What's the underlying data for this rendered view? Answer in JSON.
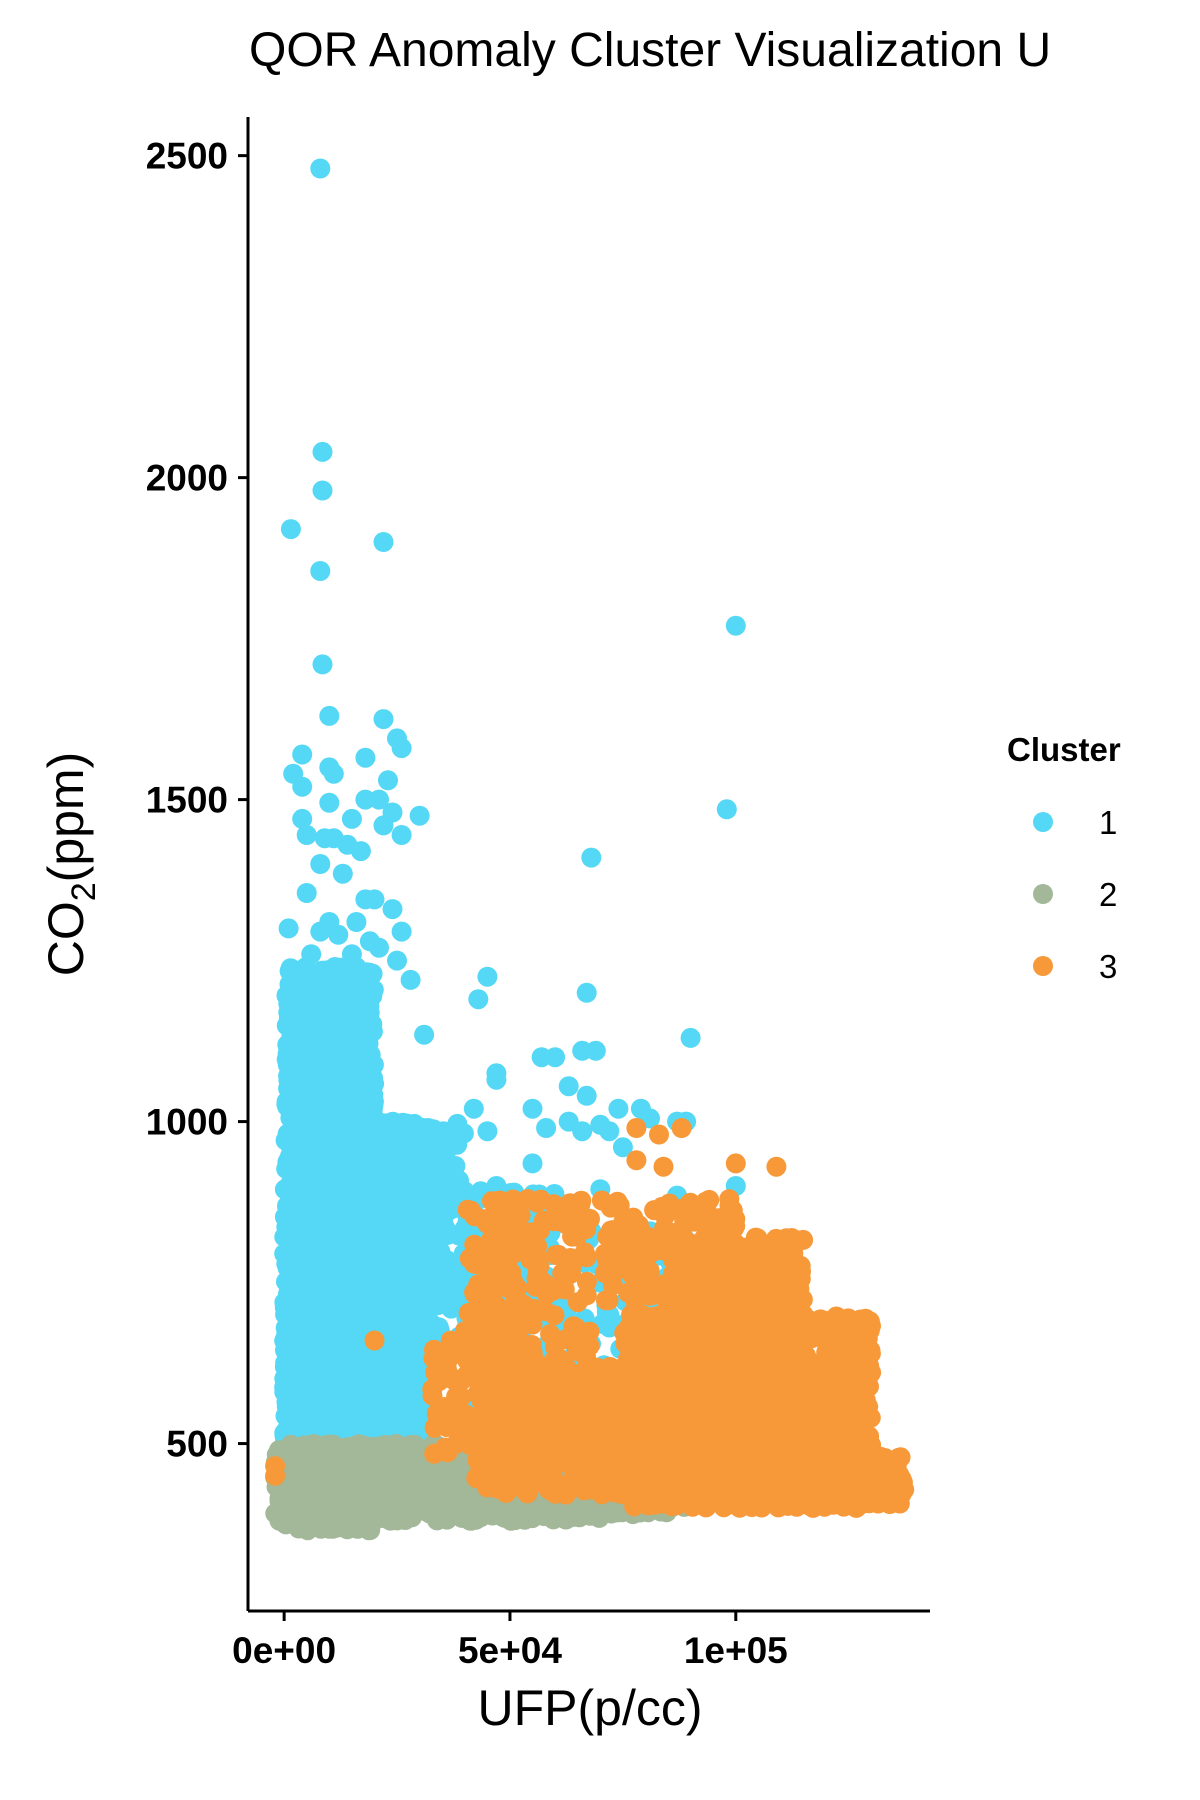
{
  "chart_data": {
    "type": "scatter",
    "title": "QOR Anomaly Cluster Visualization U",
    "xlabel": "UFP(p/cc)",
    "ylabel": "CO2(ppm)",
    "ylabel_parts": {
      "main": "CO",
      "sub": "2",
      "rest": "(ppm)"
    },
    "xlim": [
      -8000,
      143000
    ],
    "ylim": [
      240,
      2560
    ],
    "x_ticks": [
      0,
      50000,
      100000
    ],
    "x_tick_labels": [
      "0e+00",
      "5e+04",
      "1e+05"
    ],
    "y_ticks": [
      500,
      1000,
      1500,
      2000,
      2500
    ],
    "y_tick_labels": [
      "500",
      "1000",
      "1500",
      "2000",
      "2500"
    ],
    "grid": false,
    "legend": {
      "title": "Cluster",
      "position": "right",
      "entries": [
        "1",
        "2",
        "3"
      ]
    },
    "series": [
      {
        "name": "1",
        "color": "#55D8F5",
        "points": [
          [
            8000,
            2480
          ],
          [
            8500,
            2040
          ],
          [
            8500,
            1980
          ],
          [
            1500,
            1920
          ],
          [
            22000,
            1900
          ],
          [
            8000,
            1855
          ],
          [
            8500,
            1710
          ],
          [
            10000,
            1630
          ],
          [
            22000,
            1625
          ],
          [
            25000,
            1595
          ],
          [
            4000,
            1570
          ],
          [
            18000,
            1565
          ],
          [
            26000,
            1580
          ],
          [
            2000,
            1540
          ],
          [
            10000,
            1550
          ],
          [
            11000,
            1540
          ],
          [
            23000,
            1530
          ],
          [
            4000,
            1520
          ],
          [
            18000,
            1500
          ],
          [
            21000,
            1500
          ],
          [
            10000,
            1495
          ],
          [
            24000,
            1480
          ],
          [
            30000,
            1475
          ],
          [
            4000,
            1470
          ],
          [
            15000,
            1470
          ],
          [
            22000,
            1460
          ],
          [
            5000,
            1445
          ],
          [
            9000,
            1440
          ],
          [
            11000,
            1440
          ],
          [
            14000,
            1430
          ],
          [
            17000,
            1420
          ],
          [
            26000,
            1445
          ],
          [
            8000,
            1400
          ],
          [
            13000,
            1385
          ],
          [
            68000,
            1410
          ],
          [
            5000,
            1355
          ],
          [
            18000,
            1345
          ],
          [
            20000,
            1345
          ],
          [
            24000,
            1330
          ],
          [
            10000,
            1310
          ],
          [
            16000,
            1310
          ],
          [
            1000,
            1300
          ],
          [
            8000,
            1295
          ],
          [
            12000,
            1290
          ],
          [
            19000,
            1280
          ],
          [
            26000,
            1295
          ],
          [
            21000,
            1270
          ],
          [
            6000,
            1260
          ],
          [
            15000,
            1260
          ],
          [
            25000,
            1250
          ],
          [
            45000,
            1225
          ],
          [
            67000,
            1200
          ],
          [
            3000,
            1210
          ],
          [
            28000,
            1220
          ],
          [
            43000,
            1190
          ],
          [
            11000,
            1185
          ],
          [
            90000,
            1130
          ],
          [
            4000,
            1130
          ],
          [
            31000,
            1135
          ],
          [
            66000,
            1110
          ],
          [
            69000,
            1110
          ],
          [
            57000,
            1100
          ],
          [
            60000,
            1100
          ],
          [
            47000,
            1075
          ],
          [
            47000,
            1065
          ],
          [
            63000,
            1055
          ],
          [
            67000,
            1040
          ],
          [
            55000,
            1020
          ],
          [
            42000,
            1020
          ],
          [
            74000,
            1020
          ],
          [
            79000,
            1020
          ],
          [
            87000,
            1000
          ],
          [
            89000,
            1000
          ],
          [
            63000,
            1000
          ],
          [
            70000,
            995
          ],
          [
            81000,
            1005
          ],
          [
            58000,
            990
          ],
          [
            66000,
            985
          ],
          [
            72000,
            985
          ],
          [
            38000,
            985
          ],
          [
            45000,
            985
          ],
          [
            55000,
            935
          ],
          [
            75000,
            960
          ],
          [
            100000,
            1770
          ],
          [
            98000,
            1485
          ],
          [
            100000,
            900
          ],
          [
            70000,
            895
          ],
          [
            87000,
            885
          ],
          [
            88000,
            665
          ],
          [
            100000,
            800
          ],
          [
            52000,
            830
          ],
          [
            64000,
            840
          ],
          [
            68000,
            830
          ],
          [
            78000,
            820
          ],
          [
            82000,
            790
          ],
          [
            47000,
            900
          ],
          [
            58000,
            760
          ],
          [
            60000,
            730
          ],
          [
            70000,
            750
          ],
          [
            72000,
            700
          ],
          [
            92000,
            780
          ],
          [
            95000,
            720
          ],
          [
            98000,
            750
          ],
          [
            101000,
            700
          ],
          [
            77000,
            690
          ],
          [
            62000,
            610
          ],
          [
            55000,
            590
          ],
          [
            50000,
            650
          ],
          [
            30000,
            590
          ],
          [
            40000,
            560
          ],
          [
            20000,
            520
          ],
          [
            85000,
            760
          ]
        ],
        "regions": [
          [
            0,
            32000,
            480,
            1000,
            1400,
            21
          ],
          [
            500,
            20000,
            900,
            1240,
            420,
            22
          ],
          [
            20000,
            40000,
            700,
            1000,
            220,
            23
          ],
          [
            28000,
            60000,
            640,
            900,
            160,
            24
          ],
          [
            52000,
            95000,
            560,
            830,
            140,
            25
          ],
          [
            0,
            14000,
            480,
            700,
            200,
            26
          ]
        ]
      },
      {
        "name": "2",
        "color": "#A3B899",
        "points": [],
        "regions": [
          [
            -2000,
            70000,
            380,
            500,
            1100,
            31
          ],
          [
            0,
            20000,
            365,
            385,
            60,
            32
          ],
          [
            65000,
            90000,
            390,
            450,
            160,
            33
          ],
          [
            -2000,
            5000,
            430,
            490,
            80,
            34
          ]
        ]
      },
      {
        "name": "3",
        "color": "#F79939",
        "points": [
          [
            78000,
            990
          ],
          [
            83000,
            980
          ],
          [
            88000,
            990
          ],
          [
            84000,
            930
          ],
          [
            100000,
            935
          ],
          [
            109000,
            930
          ],
          [
            78000,
            940
          ],
          [
            95000,
            850
          ],
          [
            110000,
            750
          ],
          [
            113000,
            730
          ],
          [
            115000,
            700
          ],
          [
            118000,
            690
          ],
          [
            20000,
            660
          ],
          [
            124000,
            590
          ],
          [
            128000,
            560
          ],
          [
            127000,
            530
          ],
          [
            131000,
            440
          ],
          [
            133000,
            460
          ],
          [
            137000,
            440
          ],
          [
            134000,
            415
          ],
          [
            126000,
            500
          ],
          [
            132000,
            475
          ],
          [
            -2000,
            450
          ],
          [
            -2000,
            465
          ]
        ],
        "regions": [
          [
            75000,
            130000,
            400,
            700,
            1100,
            41
          ],
          [
            85000,
            115000,
            600,
            820,
            380,
            42
          ],
          [
            42000,
            85000,
            420,
            620,
            480,
            43
          ],
          [
            32000,
            55000,
            480,
            660,
            140,
            44
          ],
          [
            40000,
            68000,
            620,
            880,
            170,
            45
          ],
          [
            70000,
            100000,
            720,
            880,
            140,
            46
          ],
          [
            120000,
            138000,
            405,
            480,
            80,
            47
          ]
        ]
      }
    ]
  }
}
